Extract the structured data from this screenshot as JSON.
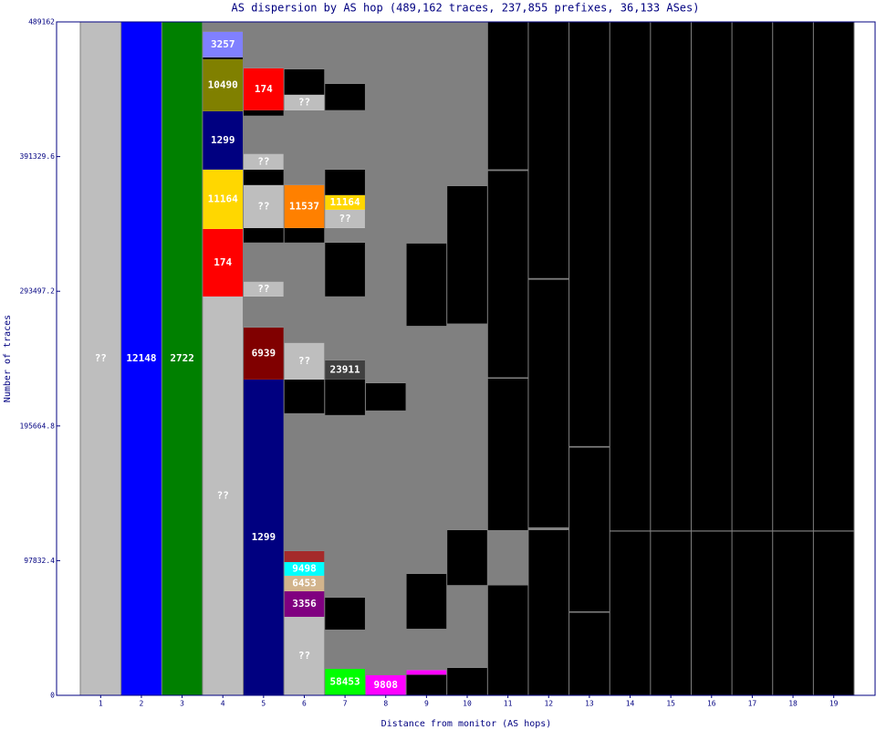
{
  "chart_data": {
    "type": "stacked-column",
    "title": "AS dispersion by AS hop (489,162 traces, 237,855 prefixes, 36,133 ASes)",
    "xlabel": "Distance from monitor (AS hops)",
    "ylabel": "Number of traces",
    "categories": [
      1,
      2,
      3,
      4,
      5,
      6,
      7,
      8,
      9,
      10,
      11,
      12,
      13,
      14,
      15,
      16,
      17,
      18,
      19
    ],
    "ylim": [
      0,
      489162
    ],
    "yticks": [
      0,
      97832.4,
      195664.8,
      293497.2,
      391329.6,
      489162
    ],
    "columns": [
      {
        "segments": [
          {
            "label": "??",
            "color": "#bebebe",
            "value": 489162
          }
        ]
      },
      {
        "segments": [
          {
            "label": "12148",
            "color": "#0000ff",
            "value": 489162
          }
        ]
      },
      {
        "segments": [
          {
            "label": "2722",
            "color": "#008000",
            "value": 489162
          }
        ]
      },
      {
        "segments": [
          {
            "label": "??",
            "color": "#bebebe",
            "value": 289700
          },
          {
            "label": "174",
            "color": "#ff0000",
            "value": 49060
          },
          {
            "label": "11164",
            "color": "#ffd700",
            "value": 43100
          },
          {
            "label": "1299",
            "color": "#000080",
            "value": 42430
          },
          {
            "label": "10490",
            "color": "#808000",
            "value": 37790
          },
          {
            "color": "#000000",
            "value": 1300
          },
          {
            "label": "3257",
            "color": "#8080ff",
            "value": 18560
          },
          {
            "color": "#808080",
            "value": 7222
          }
        ]
      },
      {
        "segments": [
          {
            "label": "1299",
            "color": "#000080",
            "value": 229400
          },
          {
            "label": "6939",
            "color": "#800000",
            "value": 37790
          },
          {
            "color": "#808080",
            "value": 22540
          },
          {
            "label": "??",
            "color": "#bebebe",
            "value": 10610
          },
          {
            "color": "#808080",
            "value": 28510
          },
          {
            "color": "#000000",
            "value": 10610
          },
          {
            "label": "??",
            "color": "#bebebe",
            "value": 31160
          },
          {
            "color": "#000000",
            "value": 11270
          },
          {
            "label": "??",
            "color": "#bebebe",
            "value": 11270
          },
          {
            "color": "#808080",
            "value": 27850
          },
          {
            "color": "#000000",
            "value": 3980
          },
          {
            "label": "174",
            "color": "#ff0000",
            "value": 30500
          },
          {
            "color": "#808080",
            "value": 33672
          }
        ]
      },
      {
        "segments": [
          {
            "label": "??",
            "color": "#bebebe",
            "value": 57020
          },
          {
            "label": "3356",
            "color": "#800080",
            "value": 18560
          },
          {
            "label": "6453",
            "color": "#d2b48c",
            "value": 11270
          },
          {
            "label": "9498",
            "color": "#00ffff",
            "value": 9940
          },
          {
            "color": "#a52a2a",
            "value": 7960
          },
          {
            "color": "#808080",
            "value": 100110
          },
          {
            "color": "#000000",
            "value": 24530
          },
          {
            "label": "??",
            "color": "#bebebe",
            "value": 26520
          },
          {
            "color": "#808080",
            "value": 72930
          },
          {
            "color": "#000000",
            "value": 10610
          },
          {
            "label": "11537",
            "color": "#ff8000",
            "value": 31160
          },
          {
            "color": "#808080",
            "value": 54370
          },
          {
            "label": "??",
            "color": "#bebebe",
            "value": 11270
          },
          {
            "color": "#000000",
            "value": 18560
          },
          {
            "color": "#808080",
            "value": 34352
          }
        ]
      },
      {
        "segments": [
          {
            "label": "58453",
            "color": "#00ff00",
            "value": 19230
          },
          {
            "color": "#808080",
            "value": 28510
          },
          {
            "color": "#000000",
            "value": 23210
          },
          {
            "color": "#808080",
            "value": 132600
          },
          {
            "color": "#000000",
            "value": 25860
          },
          {
            "label": "23911",
            "color": "#404040",
            "value": 13920
          },
          {
            "color": "#808080",
            "value": 46410
          },
          {
            "color": "#000000",
            "value": 39120
          },
          {
            "color": "#808080",
            "value": 10610
          },
          {
            "label": "??",
            "color": "#bebebe",
            "value": 13260
          },
          {
            "label": "11164",
            "color": "#ffd700",
            "value": 10610
          },
          {
            "color": "#000000",
            "value": 18560
          },
          {
            "color": "#808080",
            "value": 43100
          },
          {
            "color": "#000000",
            "value": 19230
          },
          {
            "color": "#808080",
            "value": 44932
          }
        ]
      },
      {
        "segments": [
          {
            "label": "9808",
            "color": "#ff00ff",
            "value": 14590
          },
          {
            "color": "#808080",
            "value": 192270
          },
          {
            "color": "#000000",
            "value": 19890
          },
          {
            "color": "#808080",
            "value": 262412
          }
        ]
      },
      {
        "segments": [
          {
            "color": "#000000",
            "value": 15000
          },
          {
            "color": "#ff00ff",
            "value": 3300
          },
          {
            "color": "#808080",
            "value": 30000
          },
          {
            "color": "#000000",
            "value": 40000
          },
          {
            "color": "#808080",
            "value": 180000
          },
          {
            "color": "#000000",
            "value": 60000
          },
          {
            "color": "#808080",
            "value": 160862
          }
        ]
      },
      {
        "segments": [
          {
            "color": "#000000",
            "value": 20000
          },
          {
            "color": "#808080",
            "value": 60000
          },
          {
            "color": "#000000",
            "value": 40000
          },
          {
            "color": "#808080",
            "value": 150000
          },
          {
            "color": "#000000",
            "value": 100000
          },
          {
            "color": "#808080",
            "value": 119162
          }
        ]
      },
      {
        "segments": [
          {
            "color": "#000000",
            "value": 80000
          },
          {
            "color": "#808080",
            "value": 40000
          },
          {
            "color": "#000000",
            "value": 110000
          },
          {
            "color": "#808080",
            "value": 1000
          },
          {
            "color": "#000000",
            "value": 150000
          },
          {
            "color": "#808080",
            "value": 1000
          },
          {
            "color": "#000000",
            "value": 107162
          }
        ]
      },
      {
        "segments": [
          {
            "color": "#000000",
            "value": 120000
          },
          {
            "color": "#808080",
            "value": 2000
          },
          {
            "color": "#000000",
            "value": 180000
          },
          {
            "color": "#808080",
            "value": 1000
          },
          {
            "color": "#000000",
            "value": 186162
          }
        ]
      },
      {
        "segments": [
          {
            "color": "#000000",
            "value": 60000
          },
          {
            "color": "#808080",
            "value": 1000
          },
          {
            "color": "#000000",
            "value": 119000
          },
          {
            "color": "#808080",
            "value": 1000
          },
          {
            "color": "#000000",
            "value": 308162
          }
        ]
      },
      {
        "segments": [
          {
            "color": "#000000",
            "value": 119000
          },
          {
            "color": "#808080",
            "value": 700
          },
          {
            "color": "#000000",
            "value": 369462
          }
        ]
      },
      {
        "segments": [
          {
            "color": "#000000",
            "value": 119000
          },
          {
            "color": "#808080",
            "value": 700
          },
          {
            "color": "#000000",
            "value": 369462
          }
        ]
      },
      {
        "segments": [
          {
            "color": "#000000",
            "value": 119000
          },
          {
            "color": "#808080",
            "value": 700
          },
          {
            "color": "#000000",
            "value": 369462
          }
        ]
      },
      {
        "segments": [
          {
            "color": "#000000",
            "value": 119000
          },
          {
            "color": "#808080",
            "value": 700
          },
          {
            "color": "#000000",
            "value": 369462
          }
        ]
      },
      {
        "segments": [
          {
            "color": "#000000",
            "value": 119000
          },
          {
            "color": "#808080",
            "value": 700
          },
          {
            "color": "#000000",
            "value": 369462
          }
        ]
      },
      {
        "segments": [
          {
            "color": "#000000",
            "value": 119000
          },
          {
            "color": "#808080",
            "value": 700
          },
          {
            "color": "#000000",
            "value": 369462
          }
        ]
      }
    ]
  }
}
